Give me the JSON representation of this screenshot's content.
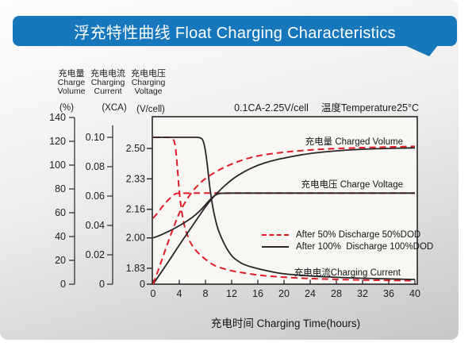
{
  "banner": {
    "title": "浮充特性曲线 Float Charging Characteristics",
    "bg_color": "#1677bd",
    "text_color": "#ffffff"
  },
  "axis_headers": [
    {
      "zh": "充电量",
      "en_line1": "Charge",
      "en_line2": "Volume",
      "unit": "(%)"
    },
    {
      "zh": "充电电流",
      "en_line1": "Charging",
      "en_line2": "Current",
      "unit": "(XCA)"
    },
    {
      "zh": "充电电压",
      "en_line1": "Charging",
      "en_line2": "Voltage",
      "unit": "(V/cell)"
    }
  ],
  "condition_note": {
    "left": "0.1CA-2.25V/cell",
    "right": "温度Temperature25°C"
  },
  "chart_data": {
    "type": "line",
    "title": "0.1CA-2.25V/cell 温度Temperature25°C",
    "xlabel": "充电时间 Charging Time(hours)",
    "grid": false,
    "legend_position": "inside-middle-right",
    "x_range": [
      0,
      40
    ],
    "x_ticks": [
      0,
      4,
      8,
      12,
      16,
      20,
      24,
      28,
      32,
      36,
      40
    ],
    "y_axes": [
      {
        "id": "percent",
        "label": "充电量 Charge Volume",
        "unit": "(%)",
        "range": [
          0,
          140
        ],
        "ticks": [
          {
            "v": 0,
            "label": "0"
          },
          {
            "v": 20,
            "label": "20"
          },
          {
            "v": 40,
            "label": "40"
          },
          {
            "v": 60,
            "label": "60"
          },
          {
            "v": 80,
            "label": "80"
          },
          {
            "v": 100,
            "label": "100"
          },
          {
            "v": 120,
            "label": "120"
          },
          {
            "v": 140,
            "label": "140"
          }
        ]
      },
      {
        "id": "xca",
        "label": "充电电流 Charging Current",
        "unit": "(XCA)",
        "range": [
          0,
          0.114
        ],
        "ticks": [
          {
            "v": 0,
            "label": "0"
          },
          {
            "v": 0.02,
            "label": "0.02"
          },
          {
            "v": 0.04,
            "label": "0.04"
          },
          {
            "v": 0.06,
            "label": "0.06"
          },
          {
            "v": 0.08,
            "label": "0.08"
          },
          {
            "v": 0.1,
            "label": "0.10"
          }
        ]
      },
      {
        "id": "vcell",
        "label": "充电电压 Charging Voltage",
        "unit": "(V/cell)",
        "broken_axis": true,
        "ticks": [
          {
            "v": 0,
            "label": "0"
          },
          {
            "v": 1.83,
            "label": "1.83"
          },
          {
            "v": 2.0,
            "label": "2.00"
          },
          {
            "v": 2.16,
            "label": "2.16"
          },
          {
            "v": 2.33,
            "label": "2.33"
          },
          {
            "v": 2.5,
            "label": "2.50"
          }
        ]
      }
    ],
    "curve_labels": {
      "volume": "充电量 Charged Volume",
      "voltage": "充电电压 Charge Voltage",
      "current": "充电电流Charging Current"
    },
    "legend": [
      {
        "label": "After 50% Discharge 50%DOD",
        "style": "dashed",
        "color": "#e11b26"
      },
      {
        "label": "After 100%  Discharge 100%DOD",
        "style": "solid",
        "color": "#2a2627"
      }
    ],
    "series": [
      {
        "id": "voltage-50dod",
        "group": "voltage",
        "dod": "50%",
        "axis": "vcell",
        "color": "#e11b26",
        "dashed": true,
        "points": [
          [
            0,
            2.11
          ],
          [
            0.7,
            2.14
          ],
          [
            1.4,
            2.175
          ],
          [
            2,
            2.2
          ],
          [
            2.6,
            2.222
          ],
          [
            3.1,
            2.24
          ],
          [
            3.5,
            2.249
          ],
          [
            4,
            2.25
          ],
          [
            10,
            2.25
          ],
          [
            25,
            2.25
          ],
          [
            40,
            2.25
          ]
        ]
      },
      {
        "id": "current-50dod",
        "group": "current",
        "dod": "50%",
        "axis": "xca",
        "color": "#e11b26",
        "dashed": true,
        "points": [
          [
            0,
            0.1
          ],
          [
            1.5,
            0.1
          ],
          [
            3,
            0.1
          ],
          [
            3.4,
            0.095
          ],
          [
            3.7,
            0.08
          ],
          [
            4,
            0.062
          ],
          [
            4.4,
            0.048
          ],
          [
            4.8,
            0.039
          ],
          [
            5.4,
            0.031
          ],
          [
            6,
            0.026
          ],
          [
            7,
            0.0205
          ],
          [
            8,
            0.017
          ],
          [
            9,
            0.0135
          ],
          [
            10,
            0.0115
          ],
          [
            12,
            0.009
          ],
          [
            14,
            0.0075
          ],
          [
            16,
            0.0062
          ],
          [
            18,
            0.0053
          ],
          [
            22,
            0.0042
          ],
          [
            26,
            0.0035
          ],
          [
            32,
            0.0028
          ],
          [
            40,
            0.0024
          ]
        ]
      },
      {
        "id": "volume-100dod",
        "group": "volume",
        "dod": "100%",
        "axis": "percent",
        "color": "#2a2627",
        "dashed": false,
        "points": [
          [
            0,
            0
          ],
          [
            2,
            16
          ],
          [
            4,
            33
          ],
          [
            6,
            49
          ],
          [
            7.5,
            61
          ],
          [
            8,
            65
          ],
          [
            9,
            72
          ],
          [
            10,
            78
          ],
          [
            12,
            88
          ],
          [
            14,
            95
          ],
          [
            16,
            100
          ],
          [
            18,
            103.5
          ],
          [
            20,
            106
          ],
          [
            24,
            110
          ],
          [
            28,
            112
          ],
          [
            32,
            113.5
          ],
          [
            36,
            114
          ],
          [
            40,
            114.5
          ]
        ]
      },
      {
        "id": "voltage-100dod",
        "group": "voltage",
        "dod": "100%",
        "axis": "vcell",
        "color": "#2a2627",
        "dashed": false,
        "points": [
          [
            0,
            2.0
          ],
          [
            1,
            2.013
          ],
          [
            2,
            2.03
          ],
          [
            3,
            2.048
          ],
          [
            4,
            2.068
          ],
          [
            5,
            2.09
          ],
          [
            6,
            2.115
          ],
          [
            7,
            2.145
          ],
          [
            8,
            2.185
          ],
          [
            8.7,
            2.215
          ],
          [
            9.3,
            2.235
          ],
          [
            10,
            2.248
          ],
          [
            10.5,
            2.25
          ],
          [
            14,
            2.25
          ],
          [
            25,
            2.25
          ],
          [
            40,
            2.25
          ]
        ]
      },
      {
        "id": "current-100dod",
        "group": "current",
        "dod": "100%",
        "axis": "xca",
        "color": "#2a2627",
        "dashed": false,
        "points": [
          [
            0,
            0.1
          ],
          [
            3,
            0.1
          ],
          [
            6,
            0.1
          ],
          [
            7.4,
            0.1
          ],
          [
            7.8,
            0.096
          ],
          [
            8.2,
            0.085
          ],
          [
            8.6,
            0.068
          ],
          [
            9,
            0.055
          ],
          [
            9.5,
            0.044
          ],
          [
            10,
            0.036
          ],
          [
            11,
            0.026
          ],
          [
            12,
            0.019
          ],
          [
            13,
            0.0155
          ],
          [
            14,
            0.013
          ],
          [
            16,
            0.0105
          ],
          [
            18,
            0.0085
          ],
          [
            20,
            0.007
          ],
          [
            24,
            0.0055
          ],
          [
            28,
            0.0047
          ],
          [
            32,
            0.004
          ],
          [
            40,
            0.0032
          ]
        ]
      },
      {
        "id": "volume-50dod",
        "group": "volume",
        "dod": "50%",
        "axis": "percent",
        "color": "#e11b26",
        "dashed": true,
        "points": [
          [
            0,
            0
          ],
          [
            1,
            15
          ],
          [
            2,
            31
          ],
          [
            3,
            46
          ],
          [
            3.5,
            53
          ],
          [
            4,
            60
          ],
          [
            5,
            70
          ],
          [
            6,
            78
          ],
          [
            7,
            84
          ],
          [
            8,
            89
          ],
          [
            10,
            96
          ],
          [
            12,
            101
          ],
          [
            14,
            105
          ],
          [
            16,
            108
          ],
          [
            20,
            111
          ],
          [
            24,
            112.8
          ],
          [
            28,
            114
          ],
          [
            34,
            115
          ],
          [
            40,
            115.7
          ]
        ]
      }
    ]
  }
}
